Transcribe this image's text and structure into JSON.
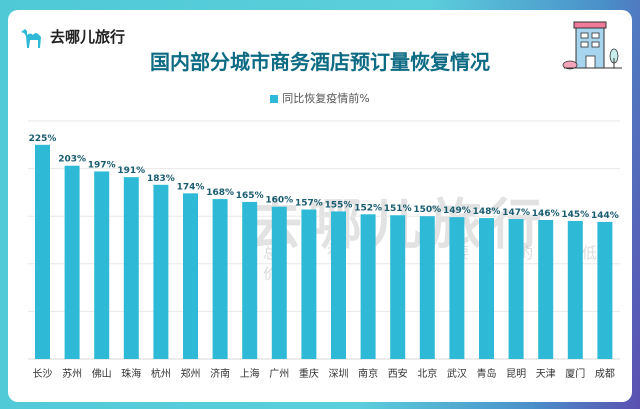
{
  "brand": {
    "name": "去哪儿旅行"
  },
  "watermark": {
    "text": "去哪儿旅行",
    "slogan": "总 有 你 要 的 低 价"
  },
  "chart_data": {
    "type": "bar",
    "title": "国内部分城市商务酒店预订量恢复情况",
    "categories": [
      "长沙",
      "苏州",
      "佛山",
      "珠海",
      "杭州",
      "郑州",
      "济南",
      "上海",
      "广州",
      "重庆",
      "深圳",
      "南京",
      "西安",
      "北京",
      "武汉",
      "青岛",
      "昆明",
      "天津",
      "厦门",
      "成都"
    ],
    "series": [
      {
        "name": "同比恢复疫情前%",
        "values": [
          225,
          203,
          197,
          191,
          183,
          174,
          168,
          165,
          160,
          157,
          155,
          152,
          151,
          150,
          149,
          148,
          147,
          146,
          145,
          144
        ]
      }
    ],
    "value_suffix": "%",
    "ylim": [
      0,
      250
    ],
    "grid": true,
    "legend": "top-center",
    "color": "#2ebad6",
    "label_color": "#1a5c70"
  }
}
